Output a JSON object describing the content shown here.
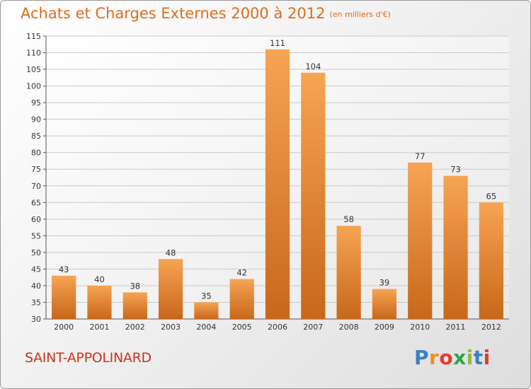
{
  "title": "Achats et Charges Externes 2000 à 2012",
  "subtitle": "(en milliers d'€)",
  "commune": "SAINT-APPOLINARD",
  "logo": {
    "letters": [
      "P",
      "r",
      "o",
      "x",
      "i",
      "t",
      "i"
    ],
    "colors": [
      "#3a7fc4",
      "#f28c1e",
      "#e23a2b",
      "#2aa64a",
      "#8fb93c",
      "#3a7fc4",
      "#e23a2b"
    ]
  },
  "colors": {
    "bar_light": "#f6a453",
    "bar_dark": "#c8671a",
    "title": "#e06c1a",
    "commune": "#c8351e"
  },
  "chart_data": {
    "type": "bar",
    "categories": [
      "2000",
      "2001",
      "2002",
      "2003",
      "2004",
      "2005",
      "2006",
      "2007",
      "2008",
      "2009",
      "2010",
      "2011",
      "2012"
    ],
    "values": [
      43,
      40,
      38,
      48,
      35,
      42,
      111,
      104,
      58,
      39,
      77,
      73,
      65
    ],
    "ylim": [
      30,
      115
    ],
    "yticks": [
      30,
      35,
      40,
      45,
      50,
      55,
      60,
      65,
      70,
      75,
      80,
      85,
      90,
      95,
      100,
      105,
      110,
      115
    ],
    "grid": true
  }
}
